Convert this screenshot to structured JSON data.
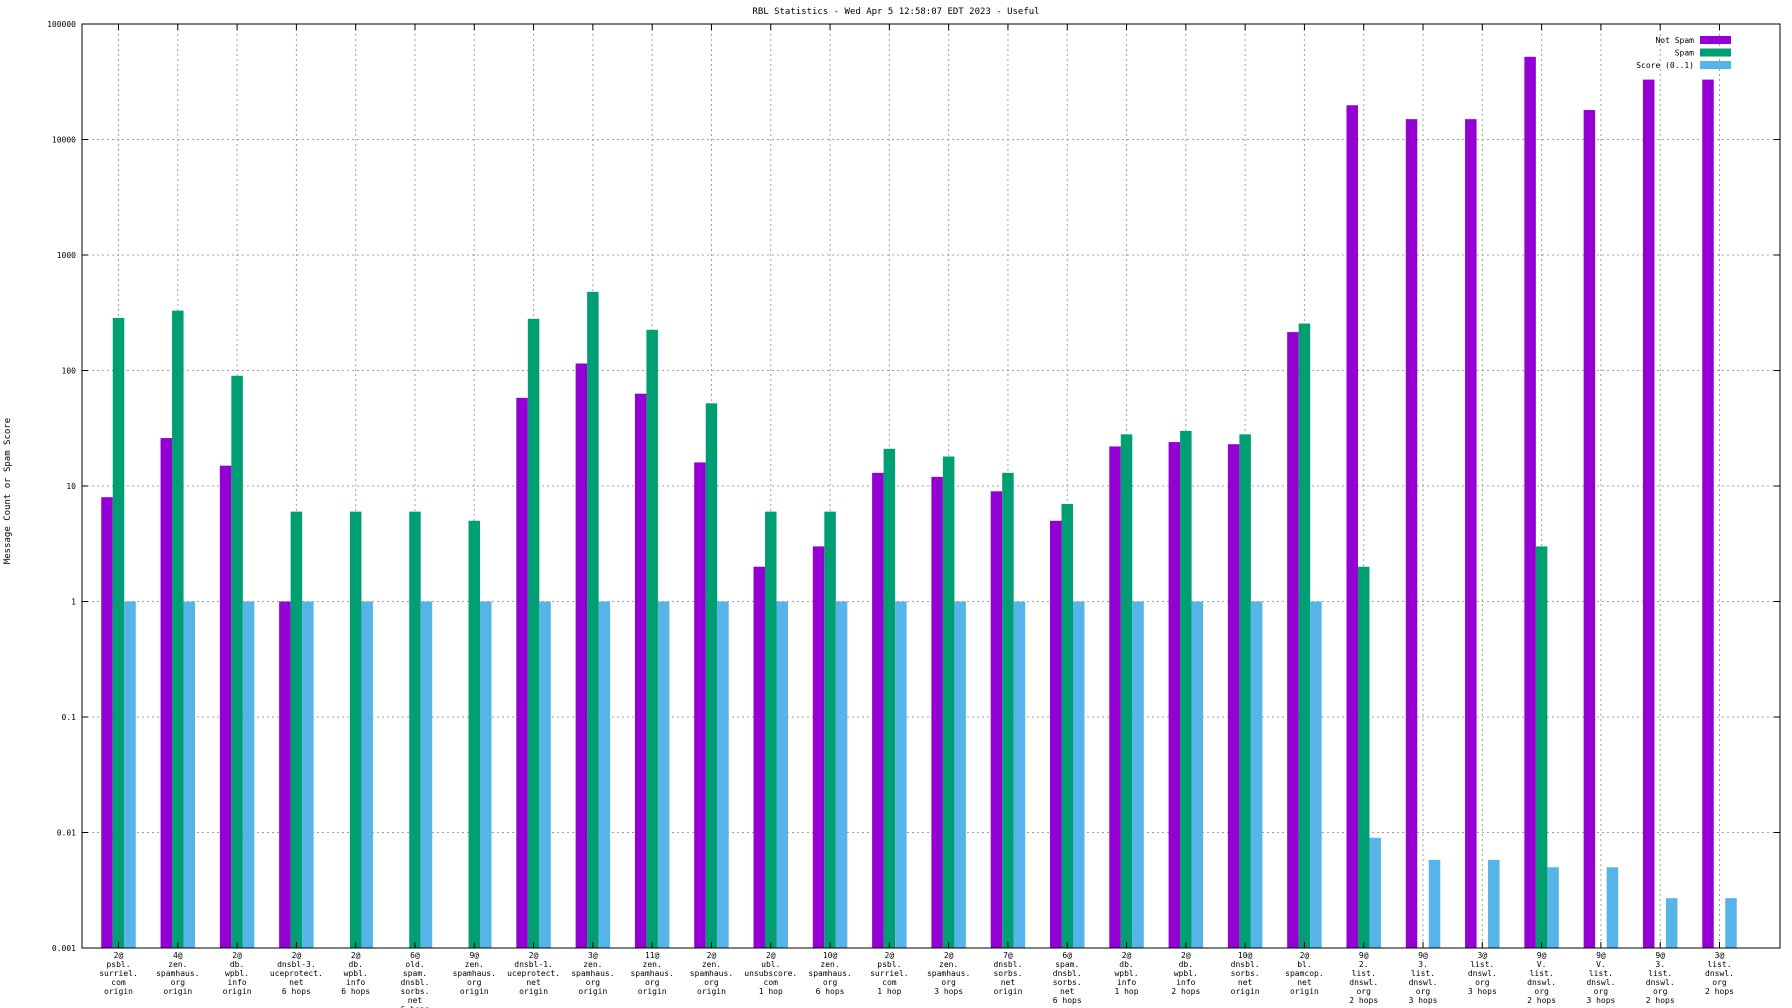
{
  "chart_data": {
    "type": "bar",
    "title": "RBL Statistics - Wed Apr  5 12:58:07 EDT 2023 - Useful",
    "xlabel": "",
    "ylabel": "Message Count or Spam Score",
    "y_scale": "log",
    "ylim": [
      0.001,
      100000
    ],
    "y_ticks": [
      "0.001",
      "0.01",
      "0.1",
      "1",
      "10",
      "100",
      "1000",
      "10000",
      "100000"
    ],
    "grid": true,
    "legend_position": "top-right",
    "categories": [
      [
        "2@",
        "psbl.",
        "surriel.",
        "com",
        "origin"
      ],
      [
        "4@",
        "zen.",
        "spamhaus.",
        "org",
        "origin"
      ],
      [
        "2@",
        "db.",
        "wpbl.",
        "info",
        "origin"
      ],
      [
        "2@",
        "dnsbl-3.",
        "uceprotect.",
        "net",
        "6 hops"
      ],
      [
        "2@",
        "db.",
        "wpbl.",
        "info",
        "6 hops"
      ],
      [
        "6@",
        "old.",
        "spam.",
        "dnsbl.",
        "sorbs.",
        "net",
        "6 hops"
      ],
      [
        "9@",
        "zen.",
        "spamhaus.",
        "org",
        "origin"
      ],
      [
        "2@",
        "dnsbl-1.",
        "uceprotect.",
        "net",
        "origin"
      ],
      [
        "3@",
        "zen.",
        "spamhaus.",
        "org",
        "origin"
      ],
      [
        "11@",
        "zen.",
        "spamhaus.",
        "org",
        "origin"
      ],
      [
        "2@",
        "zen.",
        "spamhaus.",
        "org",
        "origin"
      ],
      [
        "2@",
        "ubl.",
        "unsubscore.",
        "com",
        "1 hop"
      ],
      [
        "10@",
        "zen.",
        "spamhaus.",
        "org",
        "6 hops"
      ],
      [
        "2@",
        "psbl.",
        "surriel.",
        "com",
        "1 hop"
      ],
      [
        "2@",
        "zen.",
        "spamhaus.",
        "org",
        "3 hops"
      ],
      [
        "7@",
        "dnsbl.",
        "sorbs.",
        "net",
        "origin"
      ],
      [
        "6@",
        "spam.",
        "dnsbl.",
        "sorbs.",
        "net",
        "6 hops"
      ],
      [
        "2@",
        "db.",
        "wpbl.",
        "info",
        "1 hop"
      ],
      [
        "2@",
        "db.",
        "wpbl.",
        "info",
        "2 hops"
      ],
      [
        "10@",
        "dnsbl.",
        "sorbs.",
        "net",
        "origin"
      ],
      [
        "2@",
        "bl.",
        "spamcop.",
        "net",
        "origin"
      ],
      [
        "9@",
        "2.",
        "list.",
        "dnswl.",
        "org",
        "2 hops"
      ],
      [
        "9@",
        "3.",
        "list.",
        "dnswl.",
        "org",
        "3 hops"
      ],
      [
        "3@",
        "list.",
        "dnswl.",
        "org",
        "3 hops"
      ],
      [
        "9@",
        "V.",
        "list.",
        "dnswl.",
        "org",
        "2 hops"
      ],
      [
        "9@",
        "V.",
        "list.",
        "dnswl.",
        "org",
        "3 hops"
      ],
      [
        "9@",
        "3.",
        "list.",
        "dnswl.",
        "org",
        "2 hops"
      ],
      [
        "3@",
        "list.",
        "dnswl.",
        "org",
        "2 hops"
      ]
    ],
    "series": [
      {
        "name": "Not Spam",
        "color": "#9400d3",
        "values": [
          8,
          26,
          15,
          1,
          null,
          null,
          null,
          58,
          115,
          63,
          16,
          2,
          3,
          13,
          12,
          9,
          5,
          22,
          24,
          23,
          215,
          19800,
          15000,
          15000,
          52000,
          18000,
          33000,
          33000
        ]
      },
      {
        "name": "Spam",
        "color": "#009e73",
        "values": [
          285,
          330,
          90,
          6,
          6,
          6,
          5,
          280,
          480,
          225,
          52,
          6,
          6,
          21,
          18,
          13,
          7,
          28,
          30,
          28,
          255,
          2,
          null,
          null,
          3,
          null,
          null,
          null
        ]
      },
      {
        "name": "Score (0..1)",
        "color": "#56b4e9",
        "values": [
          1,
          1,
          1,
          1,
          1,
          1,
          1,
          1,
          1,
          1,
          1,
          1,
          1,
          1,
          1,
          1,
          1,
          1,
          1,
          1,
          1,
          0.009,
          0.0058,
          0.0058,
          0.005,
          0.005,
          0.0027,
          0.0027
        ]
      }
    ]
  }
}
